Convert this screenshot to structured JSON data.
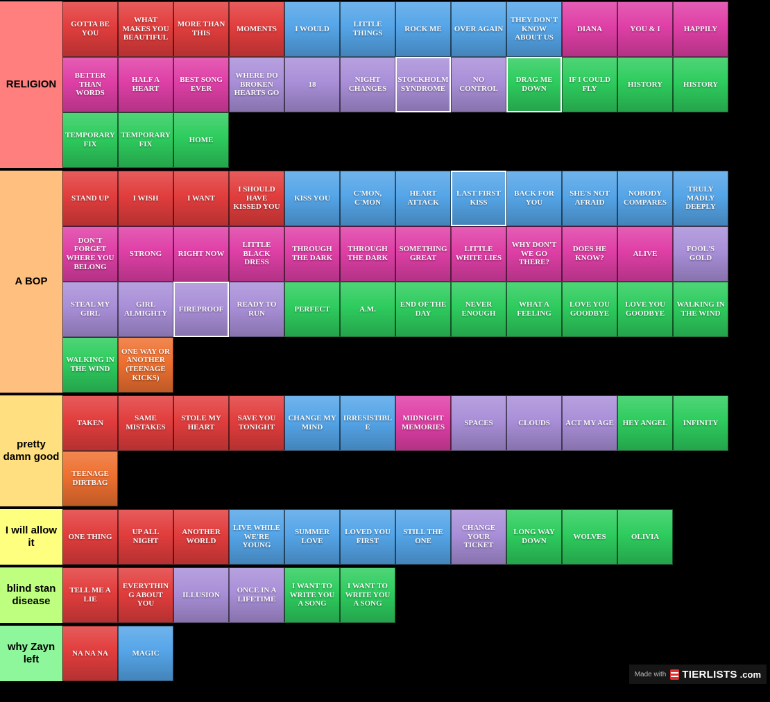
{
  "page": {
    "background": "#000000"
  },
  "colors": {
    "red": "#e23d3d",
    "magenta": "#df3fa6",
    "blue": "#55a5e8",
    "purple": "#a98fd8",
    "green": "#2ecc5e",
    "orange": "#ee7030"
  },
  "watermark": {
    "made_with": "Made with",
    "brand": "TIERLISTS",
    "suffix": ".com"
  },
  "tiers": [
    {
      "label": "RELIGION",
      "label_color": "#ff7f7e",
      "items": [
        {
          "label": "GOTTA BE YOU",
          "color": "red"
        },
        {
          "label": "WHAT MAKES YOU BEAUTIFUL",
          "color": "red"
        },
        {
          "label": "MORE THAN THIS",
          "color": "red"
        },
        {
          "label": "MOMENTS",
          "color": "red"
        },
        {
          "label": "I WOULD",
          "color": "blue"
        },
        {
          "label": "LITTLE THINGS",
          "color": "blue"
        },
        {
          "label": "ROCK ME",
          "color": "blue"
        },
        {
          "label": "OVER AGAIN",
          "color": "blue"
        },
        {
          "label": "THEY DON'T KNOW ABOUT US",
          "color": "blue"
        },
        {
          "label": "DIANA",
          "color": "magenta"
        },
        {
          "label": "YOU & I",
          "color": "magenta"
        },
        {
          "label": "HAPPILY",
          "color": "magenta"
        },
        {
          "label": "BETTER THAN WORDS",
          "color": "magenta"
        },
        {
          "label": "HALF A HEART",
          "color": "magenta"
        },
        {
          "label": "BEST SONG EVER",
          "color": "magenta"
        },
        {
          "label": "WHERE DO BROKEN HEARTS GO",
          "color": "purple"
        },
        {
          "label": "18",
          "color": "purple"
        },
        {
          "label": "NIGHT CHANGES",
          "color": "purple"
        },
        {
          "label": "STOCKHOLM SYNDROME",
          "color": "purple",
          "highlight": true
        },
        {
          "label": "NO CONTROL",
          "color": "purple"
        },
        {
          "label": "DRAG ME DOWN",
          "color": "green",
          "highlight": true
        },
        {
          "label": "IF I COULD FLY",
          "color": "green"
        },
        {
          "label": "HISTORY",
          "color": "green"
        },
        {
          "label": "HISTORY",
          "color": "green"
        },
        {
          "label": "TEMPORARY FIX",
          "color": "green"
        },
        {
          "label": "TEMPORARY FIX",
          "color": "green"
        },
        {
          "label": "HOME",
          "color": "green"
        }
      ]
    },
    {
      "label": "A BOP",
      "label_color": "#ffbf7f",
      "items": [
        {
          "label": "STAND UP",
          "color": "red"
        },
        {
          "label": "I WISH",
          "color": "red"
        },
        {
          "label": "I WANT",
          "color": "red"
        },
        {
          "label": "I SHOULD HAVE KISSED YOU",
          "color": "red"
        },
        {
          "label": "KISS YOU",
          "color": "blue"
        },
        {
          "label": "C'MON, C'MON",
          "color": "blue"
        },
        {
          "label": "HEART ATTACK",
          "color": "blue"
        },
        {
          "label": "LAST FIRST KISS",
          "color": "blue",
          "highlight": true
        },
        {
          "label": "BACK FOR YOU",
          "color": "blue"
        },
        {
          "label": "SHE'S NOT AFRAID",
          "color": "blue"
        },
        {
          "label": "NOBODY COMPARES",
          "color": "blue"
        },
        {
          "label": "TRULY MADLY DEEPLY",
          "color": "blue"
        },
        {
          "label": "DON'T FORGET WHERE YOU BELONG",
          "color": "magenta"
        },
        {
          "label": "STRONG",
          "color": "magenta"
        },
        {
          "label": "RIGHT NOW",
          "color": "magenta"
        },
        {
          "label": "LITTLE BLACK DRESS",
          "color": "magenta"
        },
        {
          "label": "THROUGH THE DARK",
          "color": "magenta"
        },
        {
          "label": "THROUGH THE DARK",
          "color": "magenta"
        },
        {
          "label": "SOMETHING GREAT",
          "color": "magenta"
        },
        {
          "label": "LITTLE WHITE LIES",
          "color": "magenta"
        },
        {
          "label": "WHY DON'T WE GO THERE?",
          "color": "magenta"
        },
        {
          "label": "DOES HE KNOW?",
          "color": "magenta"
        },
        {
          "label": "ALIVE",
          "color": "magenta"
        },
        {
          "label": "FOOL'S GOLD",
          "color": "purple"
        },
        {
          "label": "STEAL MY GIRL",
          "color": "purple"
        },
        {
          "label": "GIRL ALMIGHTY",
          "color": "purple"
        },
        {
          "label": "FIREPROOF",
          "color": "purple",
          "highlight": true
        },
        {
          "label": "READY TO RUN",
          "color": "purple"
        },
        {
          "label": "PERFECT",
          "color": "green"
        },
        {
          "label": "A.M.",
          "color": "green"
        },
        {
          "label": "END OF THE DAY",
          "color": "green"
        },
        {
          "label": "NEVER ENOUGH",
          "color": "green"
        },
        {
          "label": "WHAT A FEELING",
          "color": "green"
        },
        {
          "label": "LOVE YOU GOODBYE",
          "color": "green"
        },
        {
          "label": "LOVE YOU GOODBYE",
          "color": "green"
        },
        {
          "label": "WALKING IN THE WIND",
          "color": "green"
        },
        {
          "label": "WALKING IN THE WIND",
          "color": "green"
        },
        {
          "label": "ONE WAY OR ANOTHER (TEENAGE KICKS)",
          "color": "orange"
        }
      ]
    },
    {
      "label": "pretty damn good",
      "label_color": "#ffdf80",
      "items": [
        {
          "label": "TAKEN",
          "color": "red"
        },
        {
          "label": "SAME MISTAKES",
          "color": "red"
        },
        {
          "label": "STOLE MY HEART",
          "color": "red"
        },
        {
          "label": "SAVE YOU TONIGHT",
          "color": "red"
        },
        {
          "label": "CHANGE MY MIND",
          "color": "blue"
        },
        {
          "label": "IRRESISTIBLE",
          "color": "blue"
        },
        {
          "label": "MIDNIGHT MEMORIES",
          "color": "magenta"
        },
        {
          "label": "SPACES",
          "color": "purple"
        },
        {
          "label": "CLOUDS",
          "color": "purple"
        },
        {
          "label": "ACT MY AGE",
          "color": "purple"
        },
        {
          "label": "HEY ANGEL",
          "color": "green"
        },
        {
          "label": "INFINITY",
          "color": "green"
        },
        {
          "label": "TEENAGE DIRTBAG",
          "color": "orange"
        }
      ]
    },
    {
      "label": "I will allow it",
      "label_color": "#ffff7f",
      "items": [
        {
          "label": "ONE THING",
          "color": "red"
        },
        {
          "label": "UP ALL NIGHT",
          "color": "red"
        },
        {
          "label": "ANOTHER WORLD",
          "color": "red"
        },
        {
          "label": "LIVE WHILE WE'RE YOUNG",
          "color": "blue"
        },
        {
          "label": "SUMMER LOVE",
          "color": "blue"
        },
        {
          "label": "LOVED YOU FIRST",
          "color": "blue"
        },
        {
          "label": "STILL THE ONE",
          "color": "blue"
        },
        {
          "label": "CHANGE YOUR TICKET",
          "color": "purple"
        },
        {
          "label": "LONG WAY DOWN",
          "color": "green"
        },
        {
          "label": "WOLVES",
          "color": "green"
        },
        {
          "label": "OLIVIA",
          "color": "green"
        }
      ]
    },
    {
      "label": "blind stan disease",
      "label_color": "#bfff7f",
      "items": [
        {
          "label": "TELL ME A LIE",
          "color": "red"
        },
        {
          "label": "EVERYTHING ABOUT YOU",
          "color": "red"
        },
        {
          "label": "ILLUSION",
          "color": "purple"
        },
        {
          "label": "ONCE IN A LIFETIME",
          "color": "purple"
        },
        {
          "label": "I WANT TO WRITE YOU A SONG",
          "color": "green"
        },
        {
          "label": "I WANT TO WRITE YOU A SONG",
          "color": "green"
        }
      ]
    },
    {
      "label": "why Zayn left",
      "label_color": "#8ef79b",
      "items": [
        {
          "label": "NA NA NA",
          "color": "red"
        },
        {
          "label": "MAGIC",
          "color": "blue"
        }
      ]
    }
  ]
}
